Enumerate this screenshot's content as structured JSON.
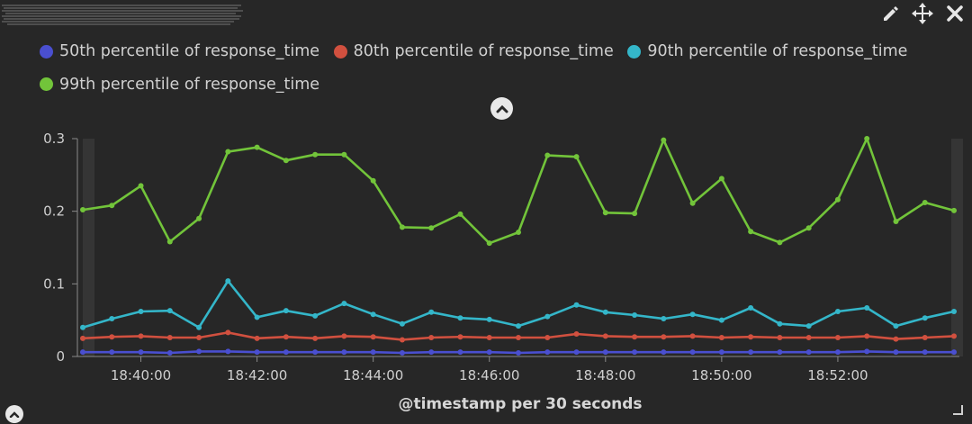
{
  "header": {
    "title_obscured": true
  },
  "toolbar": {
    "edit_icon": "pencil-icon",
    "move_icon": "move-arrows-icon",
    "close_icon": "close-icon"
  },
  "legend": {
    "items": [
      {
        "label": "50th percentile of response_time",
        "color": "#4a4fd0"
      },
      {
        "label": "80th percentile of response_time",
        "color": "#d1503f"
      },
      {
        "label": "90th percentile of response_time",
        "color": "#34b6c9"
      },
      {
        "label": "99th percentile of response_time",
        "color": "#72c43a"
      }
    ]
  },
  "chart_data": {
    "type": "line",
    "title": "",
    "xlabel": "@timestamp per 30 seconds",
    "ylabel": "",
    "ylim": [
      0,
      0.3
    ],
    "y_ticks": [
      "0",
      "0.1",
      "0.2",
      "0.3"
    ],
    "x_tick_labels": [
      "18:40:00",
      "18:42:00",
      "18:44:00",
      "18:46:00",
      "18:48:00",
      "18:50:00",
      "18:52:00"
    ],
    "x_tick_index": [
      2,
      6,
      10,
      14,
      18,
      22,
      26
    ],
    "x": [
      "18:39:00",
      "18:39:30",
      "18:40:00",
      "18:40:30",
      "18:41:00",
      "18:41:30",
      "18:42:00",
      "18:42:30",
      "18:43:00",
      "18:43:30",
      "18:44:00",
      "18:44:30",
      "18:45:00",
      "18:45:30",
      "18:46:00",
      "18:46:30",
      "18:47:00",
      "18:47:30",
      "18:48:00",
      "18:48:30",
      "18:49:00",
      "18:49:30",
      "18:50:00",
      "18:50:30",
      "18:51:00",
      "18:51:30",
      "18:52:00",
      "18:52:30",
      "18:53:00",
      "18:53:30",
      "18:54:00"
    ],
    "series": [
      {
        "name": "50th percentile of response_time",
        "color": "#4a4fd0",
        "values": [
          0.006,
          0.006,
          0.006,
          0.005,
          0.007,
          0.007,
          0.006,
          0.006,
          0.006,
          0.006,
          0.006,
          0.005,
          0.006,
          0.006,
          0.006,
          0.005,
          0.006,
          0.006,
          0.006,
          0.006,
          0.006,
          0.006,
          0.006,
          0.006,
          0.006,
          0.006,
          0.006,
          0.007,
          0.006,
          0.006,
          0.006
        ]
      },
      {
        "name": "80th percentile of response_time",
        "color": "#d1503f",
        "values": [
          0.025,
          0.027,
          0.028,
          0.026,
          0.026,
          0.033,
          0.025,
          0.027,
          0.025,
          0.028,
          0.027,
          0.023,
          0.026,
          0.027,
          0.026,
          0.026,
          0.026,
          0.031,
          0.028,
          0.027,
          0.027,
          0.028,
          0.026,
          0.027,
          0.026,
          0.026,
          0.026,
          0.028,
          0.024,
          0.026,
          0.028
        ]
      },
      {
        "name": "90th percentile of response_time",
        "color": "#34b6c9",
        "values": [
          0.04,
          0.052,
          0.062,
          0.063,
          0.04,
          0.104,
          0.054,
          0.063,
          0.056,
          0.073,
          0.058,
          0.045,
          0.061,
          0.053,
          0.051,
          0.042,
          0.055,
          0.071,
          0.061,
          0.057,
          0.052,
          0.058,
          0.05,
          0.067,
          0.045,
          0.042,
          0.062,
          0.067,
          0.042,
          0.053,
          0.062
        ]
      },
      {
        "name": "99th percentile of response_time",
        "color": "#72c43a",
        "values": [
          0.202,
          0.208,
          0.235,
          0.158,
          0.19,
          0.282,
          0.288,
          0.27,
          0.278,
          0.278,
          0.242,
          0.178,
          0.177,
          0.196,
          0.156,
          0.171,
          0.277,
          0.275,
          0.198,
          0.197,
          0.298,
          0.211,
          0.245,
          0.172,
          0.157,
          0.177,
          0.216,
          0.3,
          0.186,
          0.212,
          0.201
        ]
      }
    ]
  }
}
